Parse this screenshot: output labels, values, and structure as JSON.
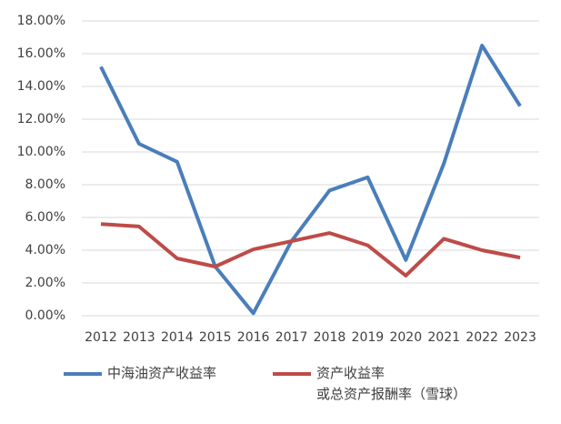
{
  "chart_data": {
    "type": "line",
    "categories": [
      "2012",
      "2013",
      "2014",
      "2015",
      "2016",
      "2017",
      "2018",
      "2019",
      "2020",
      "2021",
      "2022",
      "2023"
    ],
    "series": [
      {
        "name": "中海油资产收益率",
        "color": "#4a7ebb",
        "values": [
          15.2,
          10.5,
          9.4,
          3.0,
          0.15,
          4.55,
          7.65,
          8.45,
          3.4,
          9.3,
          16.5,
          12.8
        ]
      },
      {
        "name": "资产收益率\n或总资产报酬率（雪球）",
        "color": "#be4b48",
        "values": [
          5.6,
          5.45,
          3.5,
          3.0,
          4.05,
          4.55,
          5.05,
          4.3,
          2.45,
          4.7,
          4.0,
          3.55
        ]
      }
    ],
    "ylim": [
      0,
      18
    ],
    "yticks": [
      {
        "value": 0,
        "label": "0.00%"
      },
      {
        "value": 2,
        "label": "2.00%"
      },
      {
        "value": 4,
        "label": "4.00%"
      },
      {
        "value": 6,
        "label": "6.00%"
      },
      {
        "value": 8,
        "label": "8.00%"
      },
      {
        "value": 10,
        "label": "10.00%"
      },
      {
        "value": 12,
        "label": "12.00%"
      },
      {
        "value": 14,
        "label": "14.00%"
      },
      {
        "value": 16,
        "label": "16.00%"
      },
      {
        "value": 18,
        "label": "18.00%"
      }
    ],
    "grid": true,
    "legend": "bottom"
  }
}
